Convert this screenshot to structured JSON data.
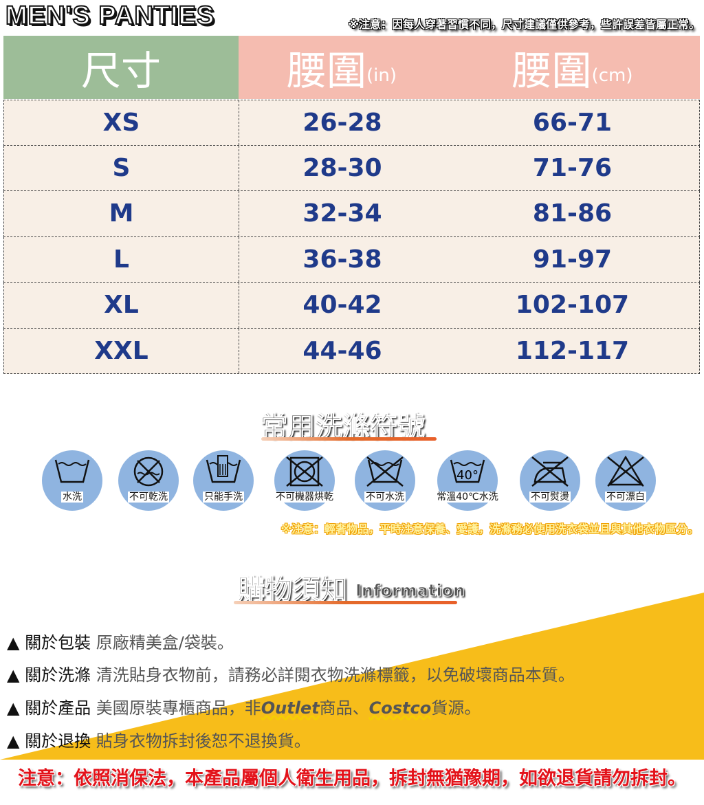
{
  "header": {
    "brand": "MEN'S PANTIES",
    "note": "※注意：因每人穿著習慣不同，尺寸建議僅供參考，些許誤差皆屬正常。"
  },
  "colors": {
    "size_header": "#9dbd98",
    "waist_header": "#f5bcb0",
    "row_bg": "#f8efe6",
    "value_text": "#1f3a8a",
    "icon_circle": "#8fb4e0",
    "band": "#f7bd1a",
    "legal": "#e3121a"
  },
  "table": {
    "headers": [
      {
        "label": "尺寸"
      },
      {
        "label": "腰圍",
        "unit": "(in)"
      },
      {
        "label": "腰圍",
        "unit": "(cm)"
      }
    ],
    "rows": [
      [
        "XS",
        "26-28",
        "66-71"
      ],
      [
        "S",
        "28-30",
        "71-76"
      ],
      [
        "M",
        "32-34",
        "81-86"
      ],
      [
        "L",
        "36-38",
        "91-97"
      ],
      [
        "XL",
        "40-42",
        "102-107"
      ],
      [
        "XXL",
        "44-46",
        "112-117"
      ]
    ]
  },
  "care": {
    "title": "常用洗滌符號",
    "icons": [
      {
        "icon": "washtub-icon",
        "label": "水洗"
      },
      {
        "icon": "no-dryclean-icon",
        "label": "不可乾洗"
      },
      {
        "icon": "handwash-icon",
        "label": "只能手洗"
      },
      {
        "icon": "no-tumble-dry-icon",
        "label": "不可機器烘乾"
      },
      {
        "icon": "no-wash-icon",
        "label": "不可水洗"
      },
      {
        "icon": "wash-40-icon",
        "label": "常溫40℃水洗",
        "temp": "40°"
      },
      {
        "icon": "no-iron-icon",
        "label": "不可熨燙"
      },
      {
        "icon": "no-bleach-icon",
        "label": "不可漂白"
      }
    ],
    "note": "※注意：輕奢物品，平時注意保養、愛護，洗滌務必使用洗衣袋並且與其他衣物區分。"
  },
  "info": {
    "title": "購物須知",
    "subtitle": "Information",
    "items": [
      {
        "key": "▲ 關於包裝",
        "text": "原廠精美盒/袋裝。"
      },
      {
        "key": "▲ 關於洗滌",
        "text": "清洗貼身衣物前，請務必詳閱衣物洗滌標籤，以免破壞商品本質。"
      },
      {
        "key": "▲ 關於產品",
        "parts": [
          "美國原裝專櫃商品，非",
          "Outlet",
          "商品、",
          "Costco",
          "貨源。"
        ]
      },
      {
        "key": "▲ 關於退換",
        "text": "貼身衣物拆封後恕不退換貨。"
      }
    ]
  },
  "legal": "注意：依照消保法，本產品屬個人衛生用品，拆封無猶豫期，如欲退貨請勿拆封。"
}
